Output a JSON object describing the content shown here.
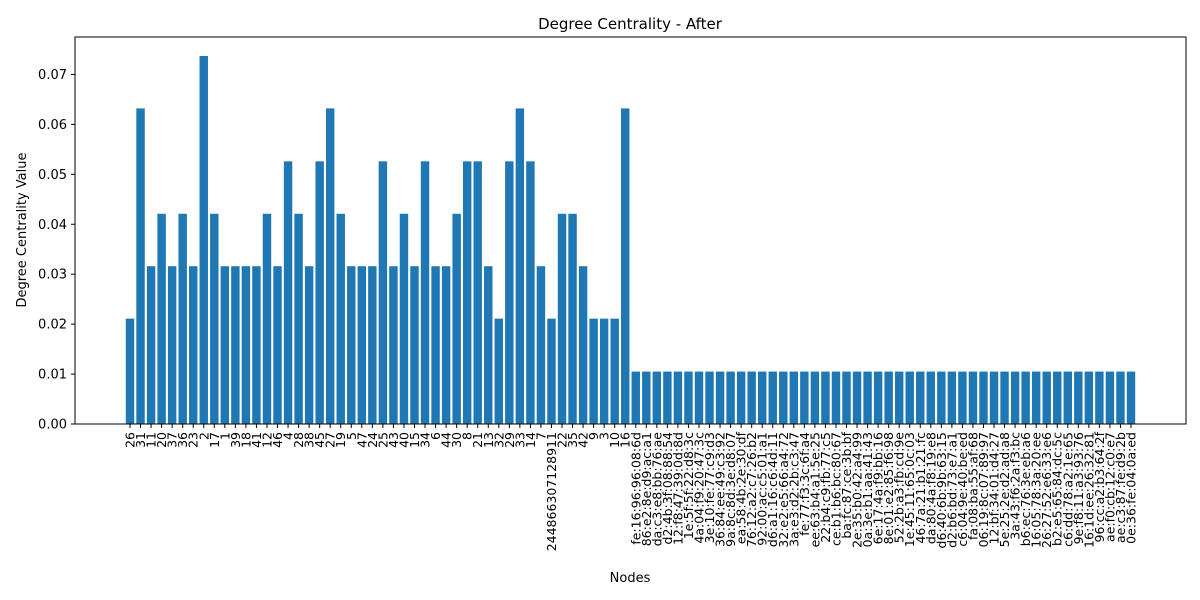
{
  "chart_data": {
    "type": "bar",
    "title": "Degree Centrality - After",
    "xlabel": "Nodes",
    "ylabel": "Degree Centrality Value",
    "ylim": [
      0,
      0.0775
    ],
    "yticks": [
      "0.00",
      "0.01",
      "0.02",
      "0.03",
      "0.04",
      "0.05",
      "0.06",
      "0.07"
    ],
    "bar_color": "#1f77b4",
    "grid": false,
    "categories": [
      "26",
      "31",
      "11",
      "20",
      "37",
      "36",
      "23",
      "2",
      "17",
      "1",
      "39",
      "18",
      "41",
      "12",
      "46",
      "4",
      "28",
      "38",
      "45",
      "27",
      "19",
      "5",
      "47",
      "24",
      "25",
      "43",
      "40",
      "15",
      "34",
      "6",
      "44",
      "30",
      "8",
      "21",
      "13",
      "32",
      "29",
      "33",
      "14",
      "7",
      "244866307128911",
      "22",
      "35",
      "42",
      "9",
      "3",
      "10",
      "16",
      "fe:16:96:96:08:6d",
      "86:e2:8e:d9:ac:a1",
      "da:c3:e8:bb:76:ae",
      "d2:4b:3f:08:88:54",
      "12:f8:47:39:0d:8d",
      "1e:5f:5f:22:d8:3c",
      "4a:04:f9:20:47:3c",
      "3e:10:fe:77:c9:d3",
      "36:84:ee:49:c3:92",
      "9a:8c:8d:3e:d8:07",
      "ea:58:4b:2e:30:df",
      "76:12:a2:c7:26:b2",
      "92:00:ac:c5:01:a1",
      "d6:a1:16:c6:4d:11",
      "32:e2:e5:66:a4:72",
      "3a:e3:d2:2b:c3:47",
      "fe:77:f3:3c:6f:a4",
      "ee:63:b4:a1:5e:25",
      "22:b4:c9:fb:77:c5",
      "ce:b1:b6:bc:80:67",
      "ba:fc:87:ce:3b:bf",
      "2e:35:b0:42:a4:99",
      "0a:3e:b1:aa:41:43",
      "6e:17:4a:f9:bb:16",
      "8e:01:e2:85:f6:98",
      "52:2b:a3:fb:cd:9e",
      "1e:45:11:65:0c:03",
      "46:7a:21:b1:21:fc",
      "da:80:4a:f8:19:e8",
      "d6:40:6b:9b:63:15",
      "d2:b6:bd:73:e7:a1",
      "c6:04:9e:40:be:ed",
      "fa:08:ba:55:af:68",
      "06:19:8c:07:89:97",
      "12:bf:34:01:d4:27",
      "5e:25:2e:d2:ad:a8",
      "3a:43:f6:2a:f3:bc",
      "b6:ec:76:3e:eb:a6",
      "16:05:78:3a:20:ee",
      "26:27:52:e6:33:e6",
      "b2:e5:65:84:dc:5c",
      "c6:dd:78:a2:1e:65",
      "9e:f8:11:a3:93:76",
      "16:1d:ee:26:32:81",
      "96:cc:a2:b3:64:2f",
      "ae:f0:cb:12:c0:e7",
      "ae:c3:87:fe:d9:2b",
      "0e:36:fe:04:0a:ed"
    ],
    "values": [
      0.0211,
      0.0632,
      0.0316,
      0.0421,
      0.0316,
      0.0421,
      0.0316,
      0.0737,
      0.0421,
      0.0316,
      0.0316,
      0.0316,
      0.0316,
      0.0421,
      0.0316,
      0.0526,
      0.0421,
      0.0316,
      0.0526,
      0.0632,
      0.0421,
      0.0316,
      0.0316,
      0.0316,
      0.0526,
      0.0316,
      0.0421,
      0.0316,
      0.0526,
      0.0316,
      0.0316,
      0.0421,
      0.0526,
      0.0526,
      0.0316,
      0.0211,
      0.0526,
      0.0632,
      0.0526,
      0.0316,
      0.0211,
      0.0421,
      0.0421,
      0.0316,
      0.0211,
      0.0211,
      0.0211,
      0.0632,
      0.0105,
      0.0105,
      0.0105,
      0.0105,
      0.0105,
      0.0105,
      0.0105,
      0.0105,
      0.0105,
      0.0105,
      0.0105,
      0.0105,
      0.0105,
      0.0105,
      0.0105,
      0.0105,
      0.0105,
      0.0105,
      0.0105,
      0.0105,
      0.0105,
      0.0105,
      0.0105,
      0.0105,
      0.0105,
      0.0105,
      0.0105,
      0.0105,
      0.0105,
      0.0105,
      0.0105,
      0.0105,
      0.0105,
      0.0105,
      0.0105,
      0.0105,
      0.0105,
      0.0105,
      0.0105,
      0.0105,
      0.0105,
      0.0105,
      0.0105,
      0.0105,
      0.0105,
      0.0105,
      0.0105,
      0.0105
    ]
  }
}
